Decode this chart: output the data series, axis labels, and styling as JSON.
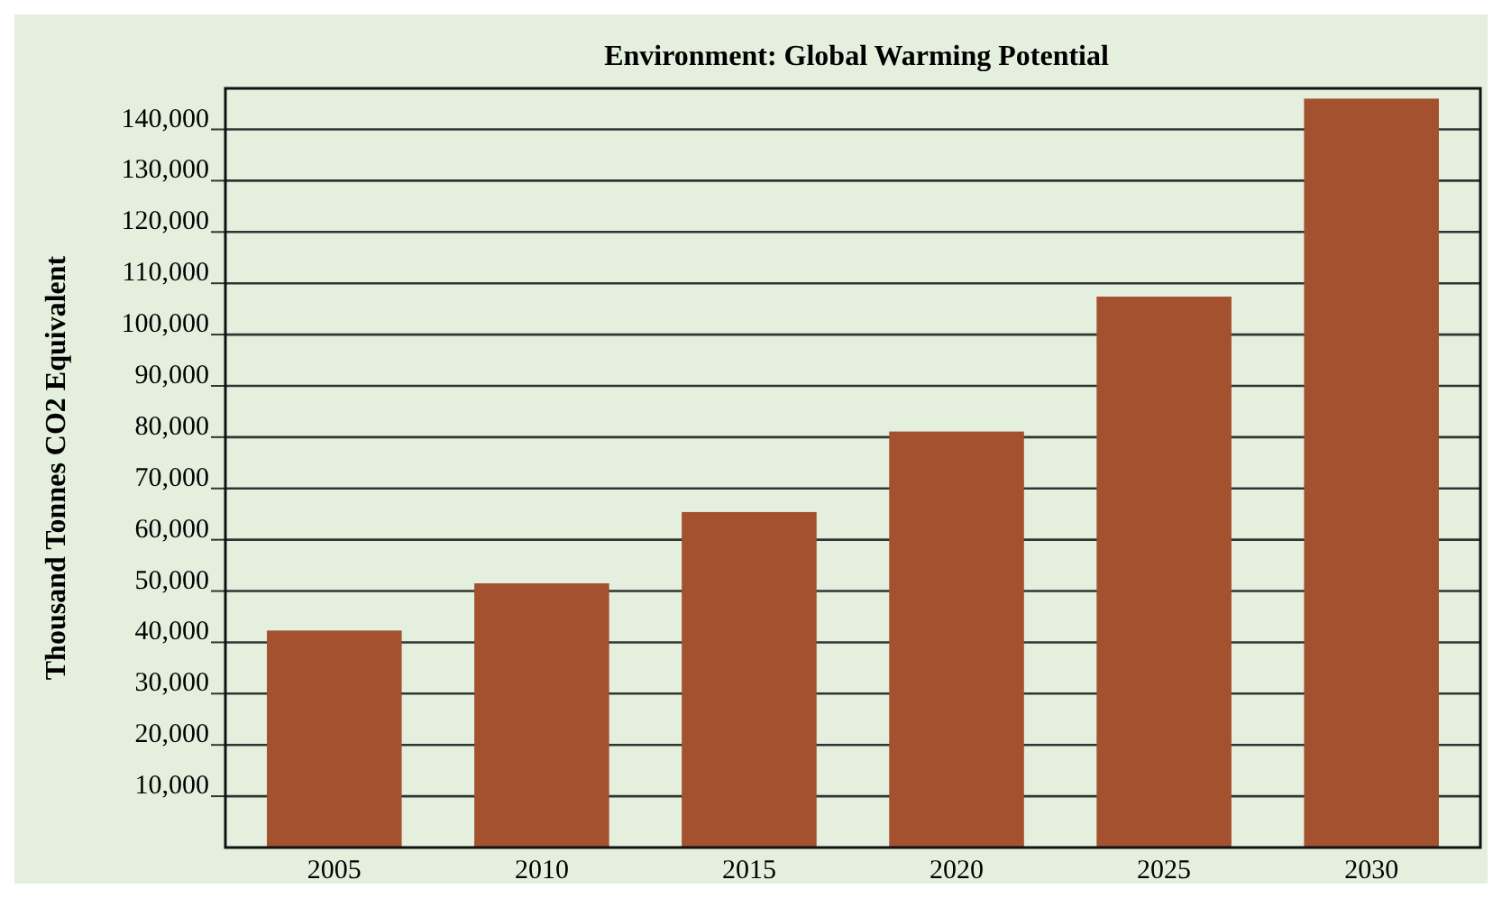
{
  "chart_data": {
    "type": "bar",
    "title": "Environment: Global Warming Potential",
    "ylabel": "Thousand Tonnes CO2 Equivalent",
    "categories": [
      "2005",
      "2010",
      "2015",
      "2020",
      "2025",
      "2030"
    ],
    "values": [
      42300,
      51500,
      65400,
      81100,
      107400,
      146000
    ],
    "color": "#a3512f",
    "ylim": [
      0,
      148000
    ],
    "yticks": [
      {
        "value": 10000,
        "label": "10,000"
      },
      {
        "value": 20000,
        "label": "20,000"
      },
      {
        "value": 30000,
        "label": "30,000"
      },
      {
        "value": 40000,
        "label": "40,000"
      },
      {
        "value": 50000,
        "label": "50,000"
      },
      {
        "value": 60000,
        "label": "60,000"
      },
      {
        "value": 70000,
        "label": "70,000"
      },
      {
        "value": 80000,
        "label": "80,000"
      },
      {
        "value": 90000,
        "label": "90,000"
      },
      {
        "value": 100000,
        "label": "100,000"
      },
      {
        "value": 110000,
        "label": "110,000"
      },
      {
        "value": 120000,
        "label": "120,000"
      },
      {
        "value": 130000,
        "label": "130,000"
      },
      {
        "value": 140000,
        "label": "140,000"
      }
    ],
    "grid": "y"
  }
}
